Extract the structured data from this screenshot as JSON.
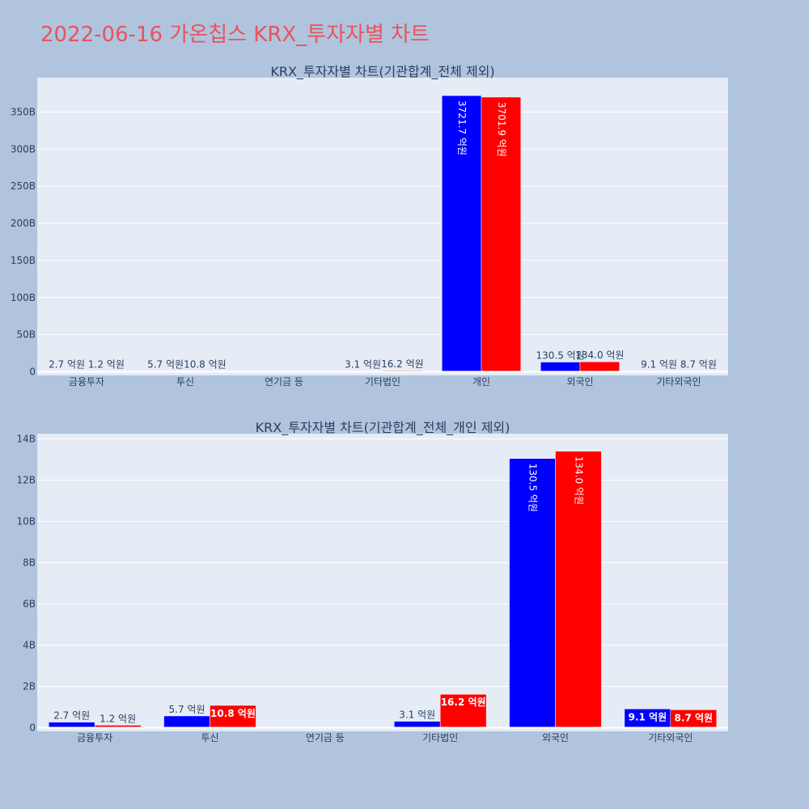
{
  "page_title": "2022-06-16 가온칩스 KRX_투자자별 차트",
  "colors": {
    "background": "#b0c4de",
    "plot_bg": "#e5ecf6",
    "title": "#e8545c",
    "buy": "#0000ff",
    "sell": "#ff0000",
    "axis_text": "#2a3f5f"
  },
  "chart_data": [
    {
      "type": "bar",
      "title": "KRX_투자자별 차트(기관합계_전체 제외)",
      "categories": [
        "금융투자",
        "투신",
        "연기금 등",
        "기타법인",
        "개인",
        "외국인",
        "기타외국인"
      ],
      "ylim": [
        0,
        400
      ],
      "y_ticks": [
        0,
        50,
        100,
        150,
        200,
        250,
        300,
        350
      ],
      "y_tick_labels": [
        "0",
        "50B",
        "100B",
        "150B",
        "200B",
        "250B",
        "300B",
        "350B"
      ],
      "grid": true,
      "series": [
        {
          "color": "#0000ff",
          "values": [
            0.27,
            0.57,
            0,
            0.31,
            372.17,
            13.05,
            0.91
          ],
          "labels": [
            "2.7 억원",
            "5.7 억원",
            "",
            "3.1 억원",
            "3721.7 억원",
            "130.5 억원",
            "9.1 억원"
          ]
        },
        {
          "color": "#ff0000",
          "values": [
            0.12,
            1.08,
            0,
            1.62,
            370.19,
            13.4,
            0.87
          ],
          "labels": [
            "1.2 억원",
            "10.8 억원",
            "",
            "16.2 억원",
            "3701.9 억원",
            "134.0 억원",
            "8.7 억원"
          ]
        }
      ]
    },
    {
      "type": "bar",
      "title": "KRX_투자자별 차트(기관합계_전체_개인 제외)",
      "categories": [
        "금융투자",
        "투신",
        "연기금 등",
        "기타법인",
        "외국인",
        "기타외국인"
      ],
      "ylim": [
        0,
        14
      ],
      "y_ticks": [
        0,
        2,
        4,
        6,
        8,
        10,
        12,
        14
      ],
      "y_tick_labels": [
        "0",
        "2B",
        "4B",
        "6B",
        "8B",
        "10B",
        "12B",
        "14B"
      ],
      "grid": true,
      "series": [
        {
          "color": "#0000ff",
          "values": [
            0.27,
            0.57,
            0,
            0.31,
            13.05,
            0.91
          ],
          "labels": [
            "2.7 억원",
            "5.7 억원",
            "",
            "3.1 억원",
            "130.5 억원",
            "9.1 억원"
          ]
        },
        {
          "color": "#ff0000",
          "values": [
            0.12,
            1.08,
            0,
            1.62,
            13.4,
            0.87
          ],
          "labels": [
            "1.2 억원",
            "10.8 억원",
            "",
            "16.2 억원",
            "134.0 억원",
            "8.7 억원"
          ]
        }
      ]
    }
  ]
}
